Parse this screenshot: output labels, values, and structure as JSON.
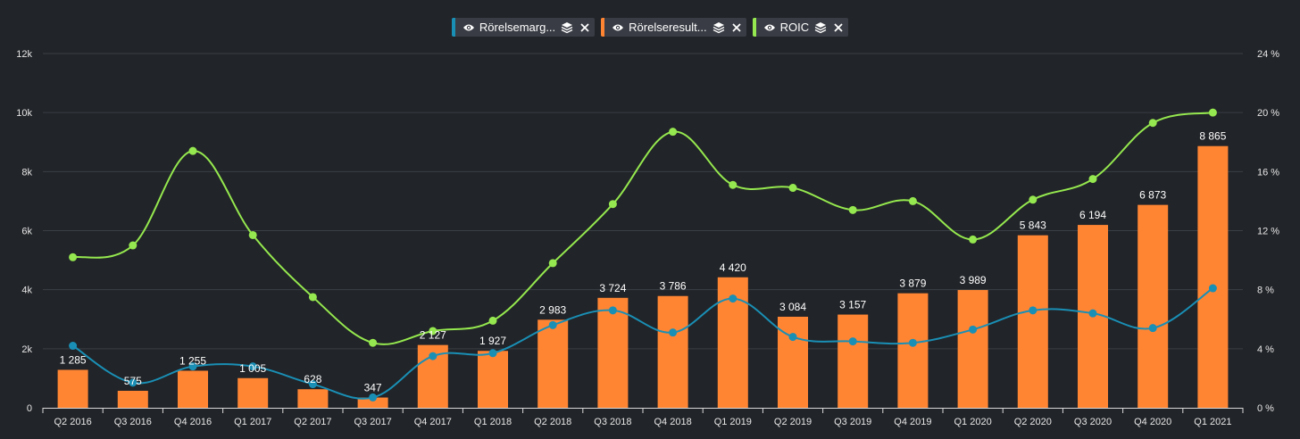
{
  "legend": {
    "items": [
      {
        "label": "Rörelsemarg...",
        "color": "#1a8fb5",
        "eye_icon": "eye-icon",
        "stack_icon": "layers-icon",
        "close_icon": "close-icon"
      },
      {
        "label": "Rörelseresult...",
        "color": "#ff8533",
        "eye_icon": "eye-icon",
        "stack_icon": "layers-icon",
        "close_icon": "close-icon"
      },
      {
        "label": "ROIC",
        "color": "#95e84f",
        "eye_icon": "eye-icon",
        "stack_icon": "layers-icon",
        "close_icon": "close-icon"
      }
    ]
  },
  "chart_data": {
    "type": "bar",
    "categories": [
      "Q2 2016",
      "Q3 2016",
      "Q4 2016",
      "Q1 2017",
      "Q2 2017",
      "Q3 2017",
      "Q4 2017",
      "Q1 2018",
      "Q2 2018",
      "Q3 2018",
      "Q4 2018",
      "Q1 2019",
      "Q2 2019",
      "Q3 2019",
      "Q4 2019",
      "Q1 2020",
      "Q2 2020",
      "Q3 2020",
      "Q4 2020",
      "Q1 2021"
    ],
    "left_axis": {
      "ylim": [
        0,
        12000
      ],
      "ticks": [
        0,
        2000,
        4000,
        6000,
        8000,
        10000,
        12000
      ],
      "tick_labels": [
        "0",
        "2k",
        "4k",
        "6k",
        "8k",
        "10k",
        "12k"
      ]
    },
    "right_axis": {
      "ylim": [
        0,
        24
      ],
      "ticks": [
        0,
        4,
        8,
        12,
        16,
        20,
        24
      ],
      "tick_labels": [
        "0 %",
        "4 %",
        "8 %",
        "12 %",
        "16 %",
        "20 %",
        "24 %"
      ]
    },
    "grid": true,
    "legend_position": "top-center",
    "series": [
      {
        "name": "Rörelseresult...",
        "type": "bar",
        "axis": "left",
        "color": "#ff8533",
        "values": [
          1285,
          575,
          1255,
          1005,
          628,
          347,
          2127,
          1927,
          2983,
          3724,
          3786,
          4420,
          3084,
          3157,
          3879,
          3989,
          5843,
          6194,
          6873,
          8865
        ],
        "data_labels": [
          "1 285",
          "575",
          "1 255",
          "1 005",
          "628",
          "347",
          "2 127",
          "1 927",
          "2 983",
          "3 724",
          "3 786",
          "4 420",
          "3 084",
          "3 157",
          "3 879",
          "3 989",
          "5 843",
          "6 194",
          "6 873",
          "8 865"
        ]
      },
      {
        "name": "Rörelsemarg...",
        "type": "line",
        "axis": "right",
        "color": "#1a8fb5",
        "values": [
          4.2,
          1.7,
          2.8,
          2.8,
          1.6,
          0.7,
          3.5,
          3.7,
          5.6,
          6.6,
          5.1,
          7.4,
          4.8,
          4.5,
          4.4,
          5.3,
          6.6,
          6.4,
          5.4,
          8.1
        ]
      },
      {
        "name": "ROIC",
        "type": "line",
        "axis": "right",
        "color": "#95e84f",
        "values": [
          10.2,
          11.0,
          17.4,
          11.7,
          7.5,
          4.4,
          5.2,
          5.9,
          9.8,
          13.8,
          18.7,
          15.1,
          14.9,
          13.4,
          14.0,
          11.4,
          14.1,
          15.5,
          19.3,
          20.0
        ]
      }
    ]
  }
}
